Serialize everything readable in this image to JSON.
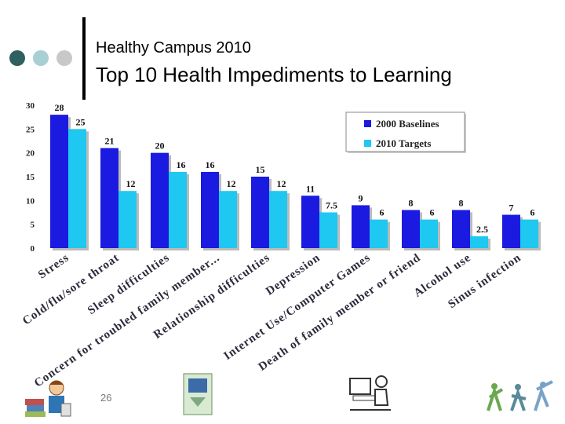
{
  "slide": {
    "title": "Healthy Campus 2010",
    "subtitle": "Top 10 Health Impediments to Learning",
    "page_number": "26"
  },
  "colors": {
    "baseline": "#1a1ae0",
    "target": "#1ec8f0",
    "dot1": "#2f5f5f",
    "dot2": "#a8cfd3",
    "dot3": "#c8c8c8"
  },
  "chart_data": {
    "type": "bar",
    "title": "",
    "xlabel": "",
    "ylabel": "",
    "ylim": [
      0,
      30
    ],
    "yticks": [
      "0",
      "5",
      "10",
      "15",
      "20",
      "25",
      "30"
    ],
    "categories": [
      "Stress",
      "Cold/flu/sore throat",
      "Sleep difficulties",
      "Concern for troubled family member...",
      "Relationship difficulties",
      "Depression",
      "Internet Use/Computer Games",
      "Death of family member or friend",
      "Alcohol use",
      "Sinus infection"
    ],
    "series": [
      {
        "name": "2000 Baselines",
        "values": [
          28,
          21,
          20,
          16,
          15,
          11,
          9,
          8,
          8,
          7
        ],
        "labels": [
          "28",
          "21",
          "20",
          "16",
          "15",
          "11",
          "9",
          "8",
          "8",
          "7"
        ]
      },
      {
        "name": "2010 Targets",
        "values": [
          25,
          12,
          16,
          12,
          12,
          7.5,
          6,
          6,
          2.5,
          6
        ],
        "labels": [
          "25",
          "12",
          "16",
          "12",
          "12",
          "7.5",
          "6",
          "6",
          "2.5",
          "6"
        ]
      }
    ],
    "legend": "top-right"
  }
}
